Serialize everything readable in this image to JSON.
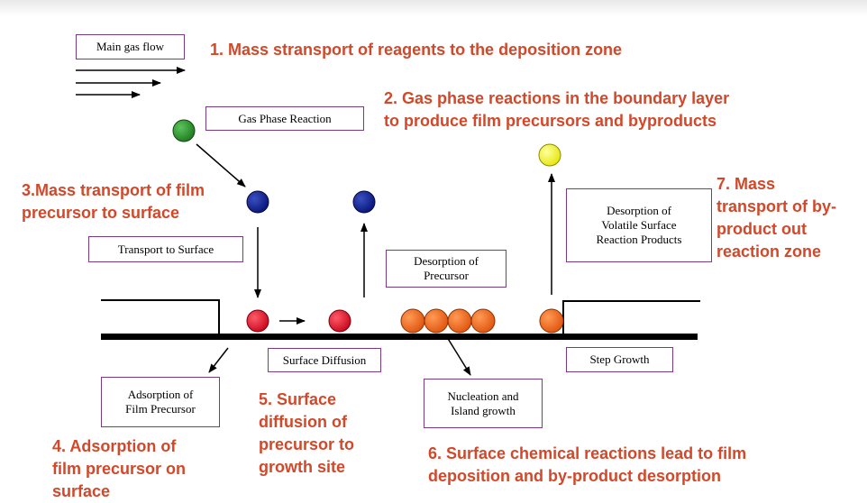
{
  "boxes": {
    "main_gas_flow": "Main gas flow",
    "gas_phase_reaction": "Gas Phase Reaction",
    "transport_to_surface": "Transport to Surface",
    "desorption_of_precursor_line1": "Desorption of",
    "desorption_of_precursor_line2": "Precursor",
    "desorption_volatile_line1": "Desorption of",
    "desorption_volatile_line2": "Volatile Surface",
    "desorption_volatile_line3": "Reaction Products",
    "surface_diffusion": "Surface Diffusion",
    "step_growth": "Step Growth",
    "adsorption_line1": "Adsorption of",
    "adsorption_line2": "Film Precursor",
    "nucleation_line1": "Nucleation and",
    "nucleation_line2": "Island growth"
  },
  "steps": {
    "s1": "1. Mass stransport of reagents to the deposition zone",
    "s2_line1": "2. Gas phase reactions in the boundary layer",
    "s2_line2": "to produce film precursors and byproducts",
    "s3_line1": "3.Mass transport of film",
    "s3_line2": "precursor to surface",
    "s4_line1": "4. Adsorption of",
    "s4_line2": "film precursor on",
    "s4_line3": "surface",
    "s5_line1": "5. Surface",
    "s5_line2": "diffusion of",
    "s5_line3": "precursor to",
    "s5_line4": "growth site",
    "s6_line1": "6. Surface chemical reactions lead to film",
    "s6_line2": "deposition and by-product desorption",
    "s7_line1": "7. Mass",
    "s7_line2": "transport of by-",
    "s7_line3": "product out",
    "s7_line4": "reaction zone"
  },
  "colors": {
    "step_text": "#d2482a",
    "box_border": "#7a3a86",
    "green_particle": "#1f8a1f",
    "blue_particle": "#0c1f8c",
    "red_particle": "#e0142a",
    "orange_particle": "#f2661a",
    "yellow_particle": "#f2f21a"
  }
}
